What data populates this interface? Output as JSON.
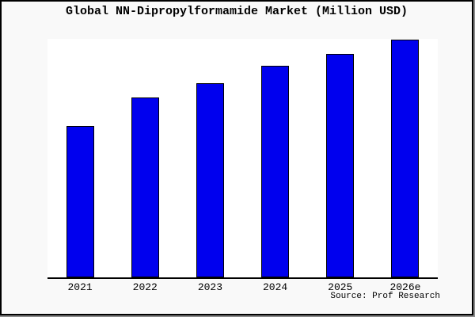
{
  "title": "Global NN-Dipropylformamide Market (Million USD)",
  "source_note": "Source: Prof Research",
  "colors": {
    "page_background": "#f9f9f9",
    "plot_background": "#ffffff",
    "bar_fill": "#0000ee",
    "bar_border": "#000000",
    "axis": "#000000",
    "frame_border": "#000000",
    "frame_shadow": "#8c8c8c",
    "text": "#000000"
  },
  "chart_data": {
    "type": "bar",
    "title": "Global NN-Dipropylformamide Market (Million USD)",
    "categories": [
      "2021",
      "2022",
      "2023",
      "2024",
      "2025",
      "2026e"
    ],
    "values": [
      63,
      75,
      81,
      88,
      93,
      99
    ],
    "values_estimated": true,
    "xlabel": "",
    "ylabel": "",
    "ylim": [
      0,
      100
    ],
    "y_axis_ticks_shown": false,
    "grid": false,
    "legend": "none",
    "bar_color": "#0000ee",
    "source": "Source: Prof Research"
  }
}
